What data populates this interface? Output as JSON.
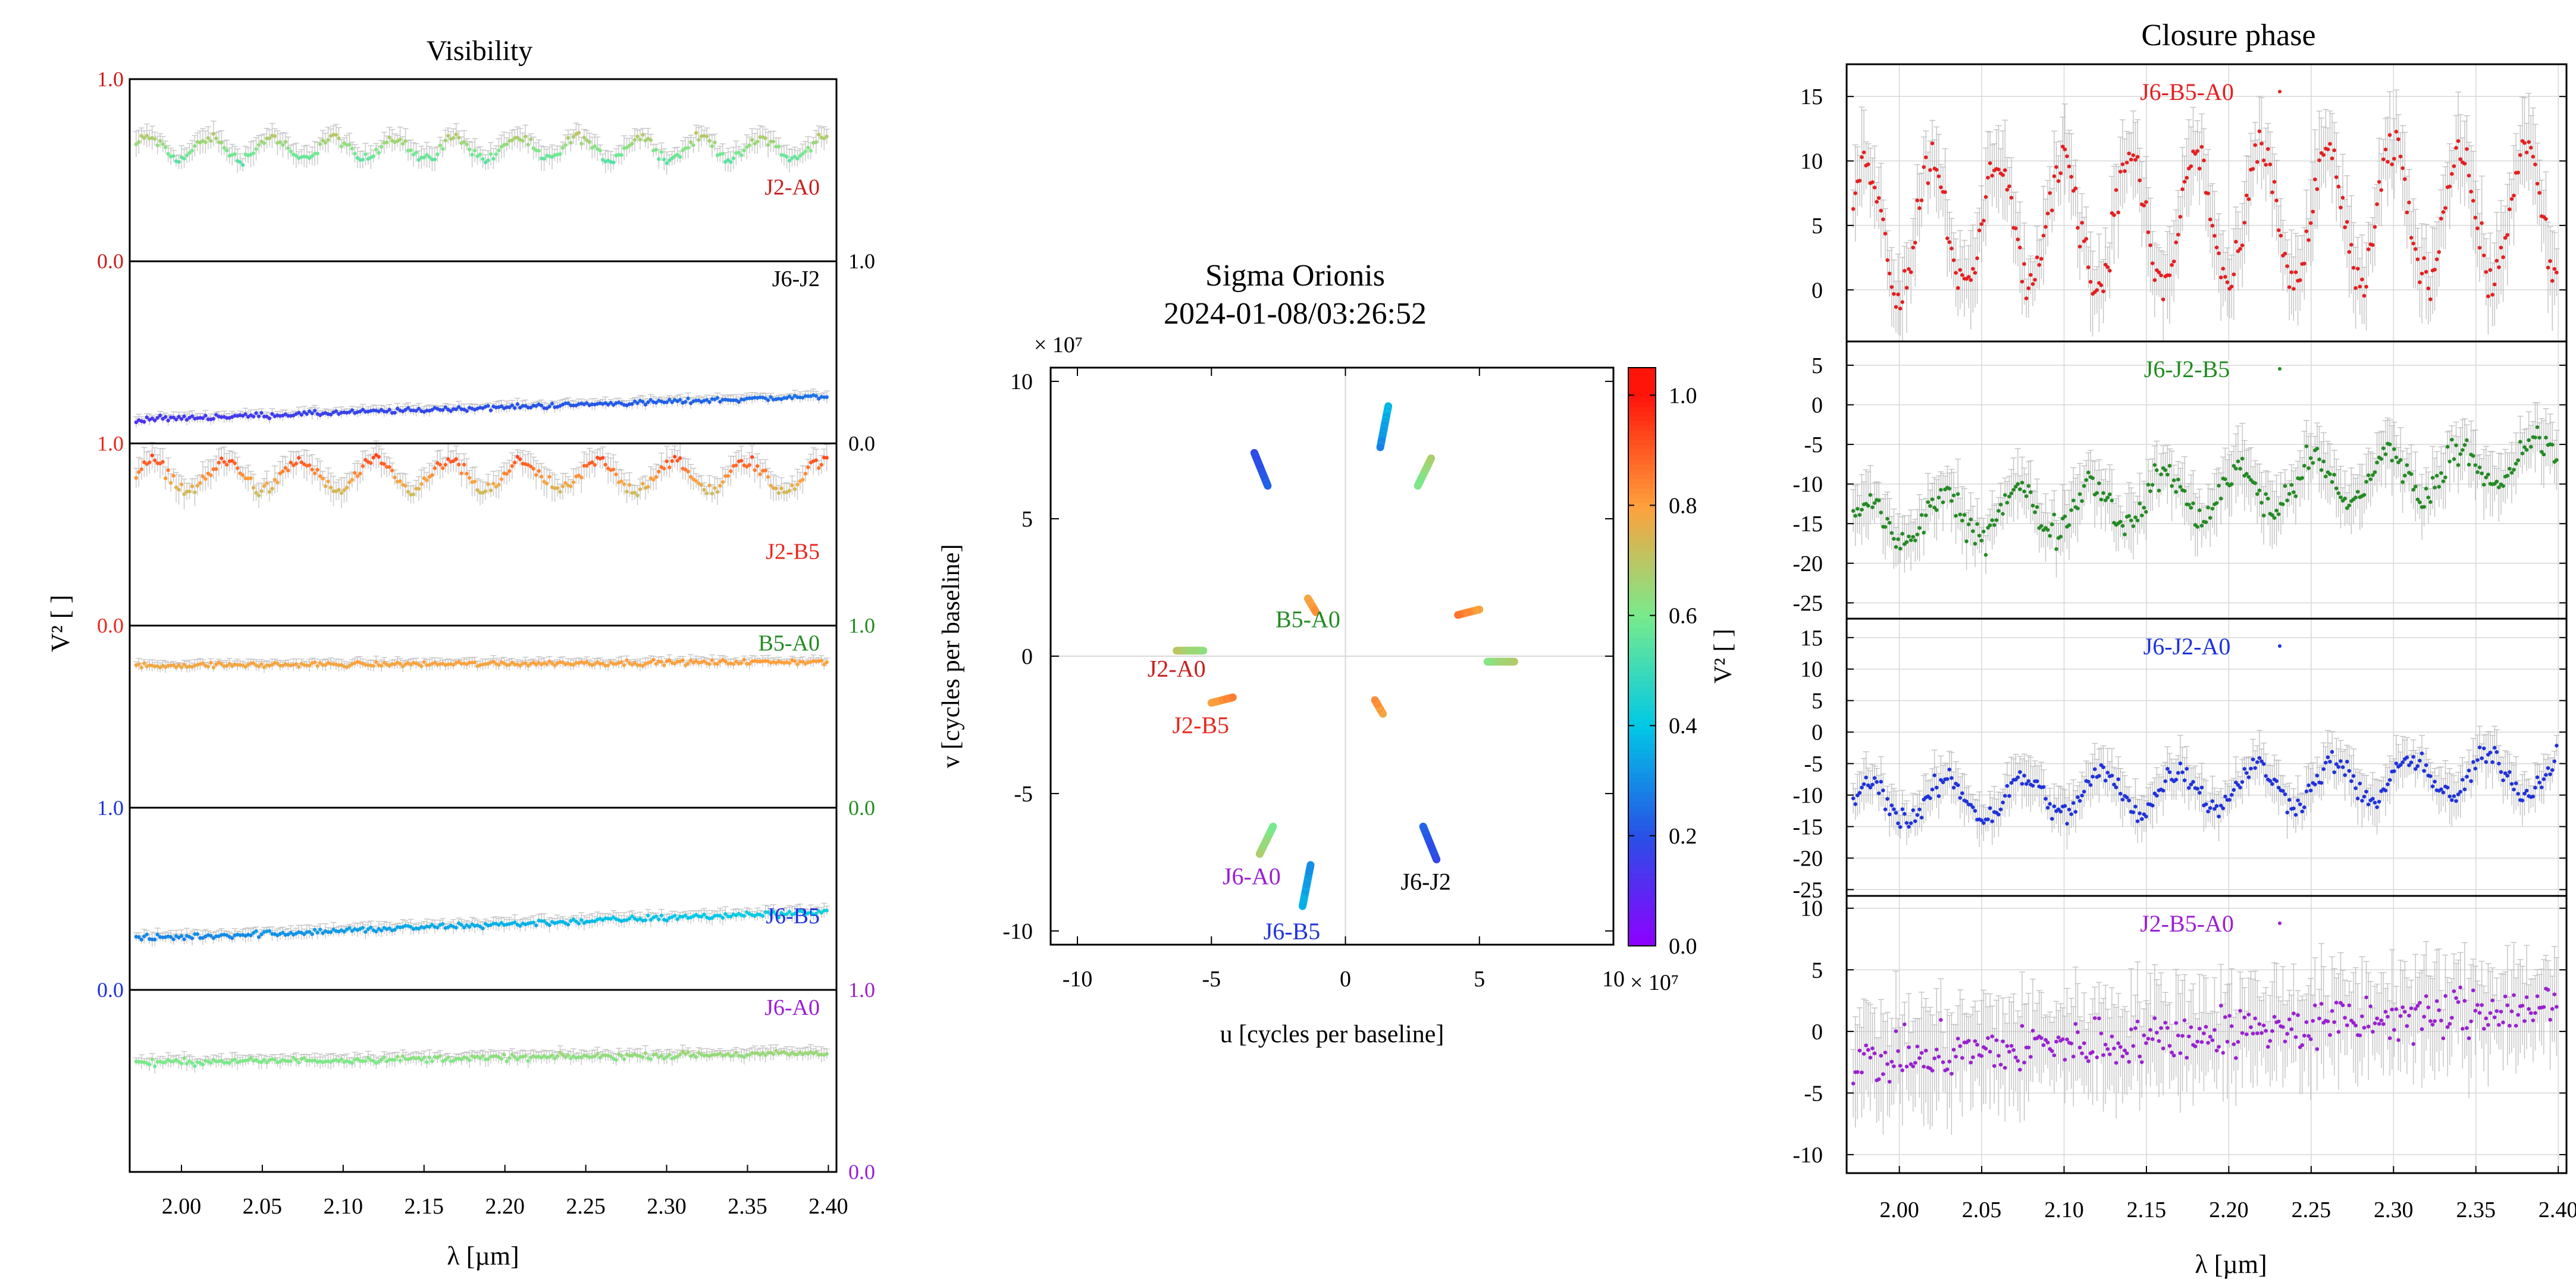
{
  "colors": {
    "J2-A0": "#c81e1e",
    "J6-J2": "#000000",
    "J2-B5": "#e8281e",
    "B5-A0": "#228b22",
    "J6-B5": "#1e32dc",
    "J6-A0": "#9b1ed2",
    "J6-B5-A0": "#e61e1e",
    "J6-J2-B5": "#228b22",
    "J6-J2-A0": "#1e32dc",
    "J2-B5-A0": "#9b1ed2",
    "error_bar": "#b4b4b4",
    "frame": "#000000",
    "grid": "#d8d8d8"
  },
  "chart_data": [
    {
      "type": "scatter",
      "title": "Visibility",
      "xlabel": "λ [µm]",
      "ylabel": "V² [ ]",
      "x_ticks": [
        "2.00",
        "2.05",
        "2.10",
        "2.15",
        "2.20",
        "2.25",
        "2.30",
        "2.35",
        "2.40"
      ],
      "xlim": [
        1.968,
        2.405
      ],
      "grid": false,
      "panels": [
        {
          "label": "J2-A0",
          "ylim": [
            0.0,
            1.0
          ],
          "tick_labels": [
            "0.0",
            "1.0"
          ],
          "axis_side": "left",
          "point_color": "v2-colormap",
          "level": 0.62,
          "slope": 0.0,
          "wiggle_amp": 0.06,
          "wiggle_period_um": 0.038,
          "noise": 0.025
        },
        {
          "label": "J6-J2",
          "ylim": [
            0.0,
            1.0
          ],
          "tick_labels": [
            "0.0",
            "1.0"
          ],
          "axis_side": "right",
          "point_color": "v2-colormap",
          "level": 0.13,
          "slope": 0.3,
          "wiggle_amp": 0.0,
          "wiggle_period_um": 0.05,
          "noise": 0.012
        },
        {
          "label": "J2-B5",
          "ylim": [
            0.0,
            1.0
          ],
          "tick_labels": [
            "0.0",
            "1.0"
          ],
          "axis_side": "left",
          "point_color": "v2-colormap",
          "level": 0.82,
          "slope": 0.0,
          "wiggle_amp": 0.08,
          "wiggle_period_um": 0.046,
          "noise": 0.03
        },
        {
          "label": "B5-A0",
          "ylim": [
            0.0,
            1.0
          ],
          "tick_labels": [
            "0.0",
            "1.0"
          ],
          "axis_side": "right",
          "point_color": "v2-colormap",
          "level": 0.78,
          "slope": 0.05,
          "wiggle_amp": 0.0,
          "wiggle_period_um": 0.05,
          "noise": 0.012
        },
        {
          "label": "J6-B5",
          "ylim": [
            0.0,
            1.0
          ],
          "tick_labels": [
            "0.0",
            "1.0"
          ],
          "axis_side": "left",
          "point_color": "v2-colormap",
          "level": 0.28,
          "slope": 0.35,
          "wiggle_amp": 0.0,
          "wiggle_period_um": 0.05,
          "noise": 0.015
        },
        {
          "label": "J6-A0",
          "ylim": [
            0.0,
            1.0
          ],
          "tick_labels": [
            "0.0",
            "1.0"
          ],
          "axis_side": "right",
          "point_color": "v2-colormap",
          "level": 0.6,
          "slope": 0.12,
          "wiggle_amp": 0.0,
          "wiggle_period_um": 0.05,
          "noise": 0.015
        }
      ]
    },
    {
      "type": "scatter",
      "title": "Sigma Orionis",
      "subtitle": "2024-01-08/03:26:52",
      "xlabel": "u [cycles per baseline]",
      "ylabel": "v [cycles per baseline]",
      "multiplier": "× 10⁷",
      "xlim": [
        -11,
        10
      ],
      "ylim": [
        -10.5,
        10.5
      ],
      "x_ticks": [
        -10,
        -5,
        0,
        5,
        10
      ],
      "y_ticks": [
        -10,
        -5,
        0,
        5,
        10
      ],
      "x_tick_labels": [
        "-10",
        "-5",
        "0",
        "5",
        "10"
      ],
      "y_tick_labels": [
        "-10",
        "-5",
        "0",
        "5",
        "10"
      ],
      "colorbar": {
        "label": "V² [ ]",
        "range": [
          0.0,
          1.05
        ],
        "ticks": [
          "0.0",
          "0.2",
          "0.4",
          "0.6",
          "0.8",
          "1.0"
        ],
        "tick_values": [
          0.0,
          0.2,
          0.4,
          0.6,
          0.8,
          1.0
        ]
      },
      "tracks": [
        {
          "label": "J6-J2",
          "from": [
            1.6,
            9.1
          ],
          "to": [
            1.3,
            7.6
          ],
          "v2": [
            0.38,
            0.3
          ],
          "show_label": false
        },
        {
          "label": "J6-J2",
          "from": [
            -1.6,
            -9.1
          ],
          "to": [
            -1.3,
            -7.6
          ],
          "v2": [
            0.38,
            0.3
          ],
          "show_label": false
        },
        {
          "label": "J2-A0",
          "from": [
            3.2,
            7.2
          ],
          "to": [
            2.7,
            6.2
          ],
          "v2": [
            0.68,
            0.6
          ],
          "show_label": false
        },
        {
          "label": "J2-A0",
          "from": [
            -3.2,
            -7.2
          ],
          "to": [
            -2.7,
            -6.2
          ],
          "v2": [
            0.68,
            0.6
          ],
          "show_label": false
        },
        {
          "label": "J6-B5",
          "from": [
            -3.4,
            7.4
          ],
          "to": [
            -2.9,
            6.2
          ],
          "v2": [
            0.18,
            0.22
          ],
          "show_label": false
        },
        {
          "label": "J6-B5",
          "from": [
            3.4,
            -7.4
          ],
          "to": [
            2.9,
            -6.2
          ],
          "v2": [
            0.18,
            0.22
          ],
          "show_label": false
        },
        {
          "label": "J2-B5",
          "from": [
            5.0,
            1.7
          ],
          "to": [
            4.2,
            1.5
          ],
          "v2": [
            0.78,
            0.86
          ],
          "show_label": false
        },
        {
          "label": "J2-B5",
          "from": [
            -5.0,
            -1.7
          ],
          "to": [
            -4.2,
            -1.5
          ],
          "v2": [
            0.78,
            0.86
          ],
          "show_label": false
        },
        {
          "label": "B5-A0",
          "from": [
            6.3,
            -0.2
          ],
          "to": [
            5.3,
            -0.2
          ],
          "v2": [
            0.7,
            0.64
          ],
          "show_label": false
        },
        {
          "label": "B5-A0",
          "from": [
            -6.3,
            0.2
          ],
          "to": [
            -5.3,
            0.2
          ],
          "v2": [
            0.7,
            0.64
          ],
          "show_label": false
        },
        {
          "label": "J6-A0",
          "from": [
            -1.4,
            2.1
          ],
          "to": [
            -1.1,
            1.6
          ],
          "v2": [
            0.78,
            0.82
          ],
          "show_label": false
        },
        {
          "label": "J6-A0",
          "from": [
            1.4,
            -2.1
          ],
          "to": [
            1.1,
            -1.6
          ],
          "v2": [
            0.78,
            0.82
          ],
          "show_label": false
        }
      ],
      "labels": [
        {
          "text": "B5-A0",
          "u": -1.4,
          "v": 1.05,
          "color_key": "B5-A0"
        },
        {
          "text": "J2-A0",
          "u": -6.3,
          "v": -0.75,
          "color_key": "J2-A0"
        },
        {
          "text": "J2-B5",
          "u": -5.4,
          "v": -2.8,
          "color_key": "J2-B5"
        },
        {
          "text": "J6-A0",
          "u": -3.5,
          "v": -8.3,
          "color_key": "J6-A0"
        },
        {
          "text": "J6-J2",
          "u": 3.0,
          "v": -8.5,
          "color_key": "J6-J2"
        },
        {
          "text": "J6-B5",
          "u": -2.0,
          "v": -10.3,
          "color_key": "J6-B5"
        }
      ]
    },
    {
      "type": "scatter",
      "title": "Closure phase",
      "xlabel": "λ [µm]",
      "x_ticks": [
        "2.00",
        "2.05",
        "2.10",
        "2.15",
        "2.20",
        "2.25",
        "2.30",
        "2.35",
        "2.40"
      ],
      "xlim": [
        1.968,
        2.405
      ],
      "grid": true,
      "panels": [
        {
          "label": "J6-B5-A0",
          "ylim": [
            -4,
            17.5
          ],
          "ticks": [
            0,
            5,
            10,
            15
          ],
          "tick_labels": [
            "0",
            "5",
            "10",
            "15"
          ],
          "point_color": "J6-B5-A0",
          "level": 4.8,
          "slope": 3.0,
          "wiggle_amp": 5.2,
          "wiggle_period_um": 0.04,
          "noise": 1.4
        },
        {
          "label": "J6-J2-B5",
          "ylim": [
            -27,
            8
          ],
          "ticks": [
            -25,
            -20,
            -15,
            -10,
            -5,
            0,
            5
          ],
          "tick_labels": [
            "-25",
            "-20",
            "-15",
            "-10",
            "-5",
            "0",
            "5"
          ],
          "point_color": "J6-J2-B5",
          "level": -15.5,
          "slope": 20.0,
          "wiggle_amp": 3.0,
          "wiggle_period_um": 0.045,
          "noise": 1.6
        },
        {
          "label": "J6-J2-A0",
          "ylim": [
            -26,
            18
          ],
          "ticks": [
            -25,
            -20,
            -15,
            -10,
            -5,
            0,
            5,
            10,
            15
          ],
          "tick_labels": [
            "-25",
            "-20",
            "-15",
            "-10",
            "-5",
            "0",
            "5",
            "10",
            "15"
          ],
          "point_color": "J6-J2-A0",
          "level": -11.5,
          "slope": 12.0,
          "wiggle_amp": 3.2,
          "wiggle_period_um": 0.047,
          "noise": 1.6
        },
        {
          "label": "J2-B5-A0",
          "ylim": [
            -11.5,
            11
          ],
          "ticks": [
            -10,
            -5,
            0,
            5,
            10
          ],
          "tick_labels": [
            "-10",
            "-5",
            "0",
            "5",
            "10"
          ],
          "point_color": "J2-B5-A0",
          "level": -2.5,
          "slope": 10.5,
          "wiggle_amp": 0.0,
          "wiggle_period_um": 0.05,
          "noise": 1.8
        }
      ]
    }
  ]
}
